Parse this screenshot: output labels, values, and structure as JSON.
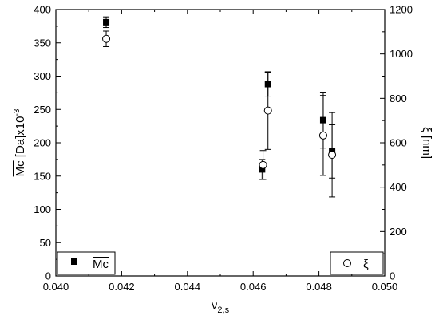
{
  "chart_data": {
    "type": "scatter",
    "xlabel_main": "ν",
    "xlabel_sub": "2,s",
    "ylabel_left": "Mc [Da]x10",
    "ylabel_left_overline": "Mc",
    "ylabel_left_suffix": " [Da]x10",
    "ylabel_left_exp": "-3",
    "ylabel_right": "ξ [nm]",
    "xlim": [
      0.04,
      0.05
    ],
    "ylim_left": [
      0,
      400
    ],
    "ylim_right": [
      0,
      1200
    ],
    "x_ticks": [
      "0.040",
      "0.042",
      "0.044",
      "0.046",
      "0.048",
      "0.050"
    ],
    "y_left_ticks": [
      "0",
      "50",
      "100",
      "150",
      "200",
      "250",
      "300",
      "350",
      "400"
    ],
    "y_right_ticks": [
      "0",
      "200",
      "400",
      "600",
      "800",
      "1000",
      "1200"
    ],
    "series": [
      {
        "name": "Mc",
        "axis": "left",
        "marker": "filled-square",
        "color": "#000000",
        "points": [
          {
            "x": 0.04153,
            "y": 381,
            "err": 8
          },
          {
            "x": 0.04627,
            "y": 160,
            "err": 15
          },
          {
            "x": 0.04645,
            "y": 288,
            "err": 18
          },
          {
            "x": 0.04813,
            "y": 234,
            "err": 42
          },
          {
            "x": 0.0484,
            "y": 187,
            "err": 40
          }
        ]
      },
      {
        "name": "ξ",
        "axis": "right",
        "marker": "open-circle",
        "color": "#000000",
        "points": [
          {
            "x": 0.04153,
            "y": 1068,
            "err": 35
          },
          {
            "x": 0.0463,
            "y": 500,
            "err": 65
          },
          {
            "x": 0.04645,
            "y": 745,
            "err": 175
          },
          {
            "x": 0.04813,
            "y": 633,
            "err": 180
          },
          {
            "x": 0.0484,
            "y": 546,
            "err": 190
          }
        ]
      }
    ],
    "legend_left": {
      "label": "Mc",
      "position": "bottom-left"
    },
    "legend_right": {
      "label": "ξ",
      "position": "bottom-right"
    },
    "grid": false
  }
}
